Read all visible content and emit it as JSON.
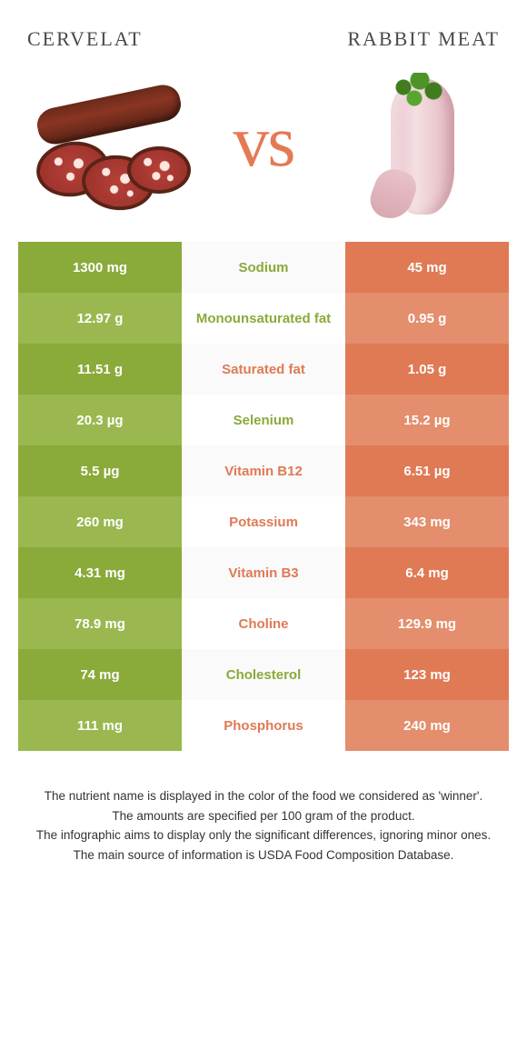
{
  "colors": {
    "left_primary": "#8aaa3a",
    "left_alt": "#9ab84f",
    "right_primary": "#df7a55",
    "right_alt": "#e48e6d",
    "vs": "#e47a55",
    "title": "#4a4a4a",
    "footnote": "#333333"
  },
  "header": {
    "left_title": "Cervelat",
    "right_title": "Rabbit meat",
    "vs_label": "vs"
  },
  "rows": [
    {
      "nutrient": "Sodium",
      "left": "1300 mg",
      "right": "45 mg",
      "winner": "left"
    },
    {
      "nutrient": "Monounsaturated fat",
      "left": "12.97 g",
      "right": "0.95 g",
      "winner": "left"
    },
    {
      "nutrient": "Saturated fat",
      "left": "11.51 g",
      "right": "1.05 g",
      "winner": "right"
    },
    {
      "nutrient": "Selenium",
      "left": "20.3 µg",
      "right": "15.2 µg",
      "winner": "left"
    },
    {
      "nutrient": "Vitamin B12",
      "left": "5.5 µg",
      "right": "6.51 µg",
      "winner": "right"
    },
    {
      "nutrient": "Potassium",
      "left": "260 mg",
      "right": "343 mg",
      "winner": "right"
    },
    {
      "nutrient": "Vitamin B3",
      "left": "4.31 mg",
      "right": "6.4 mg",
      "winner": "right"
    },
    {
      "nutrient": "Choline",
      "left": "78.9 mg",
      "right": "129.9 mg",
      "winner": "right"
    },
    {
      "nutrient": "Cholesterol",
      "left": "74 mg",
      "right": "123 mg",
      "winner": "left"
    },
    {
      "nutrient": "Phosphorus",
      "left": "111 mg",
      "right": "240 mg",
      "winner": "right"
    }
  ],
  "footnotes": [
    "The nutrient name is displayed in the color of the food we considered as 'winner'.",
    "The amounts are specified per 100 gram of the product.",
    "The infographic aims to display only the significant differences, ignoring minor ones.",
    "The main source of information is USDA Food Composition Database."
  ]
}
